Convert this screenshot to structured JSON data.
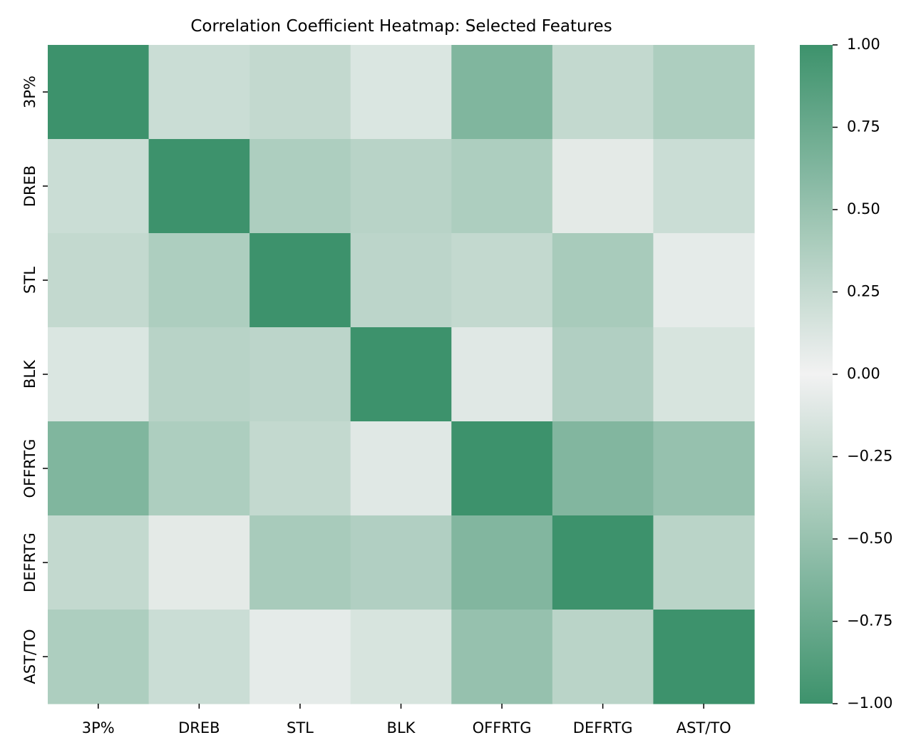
{
  "chart_data": {
    "type": "heatmap",
    "title": "Correlation Coefficient Heatmap: Selected Features",
    "xlabel": "",
    "ylabel": "",
    "x_labels": [
      "3P%",
      "DREB",
      "STL",
      "BLK",
      "OFFRTG",
      "DEFRTG",
      "AST/TO"
    ],
    "y_labels": [
      "3P%",
      "DREB",
      "STL",
      "BLK",
      "OFFRTG",
      "DEFRTG",
      "AST/TO"
    ],
    "values": [
      [
        1.0,
        0.22,
        0.26,
        0.13,
        0.63,
        0.26,
        0.38
      ],
      [
        0.22,
        1.0,
        0.38,
        0.32,
        0.38,
        0.08,
        0.22
      ],
      [
        0.26,
        0.38,
        1.0,
        0.3,
        0.26,
        0.41,
        0.07
      ],
      [
        0.13,
        0.32,
        0.3,
        1.0,
        0.1,
        0.36,
        0.15
      ],
      [
        0.63,
        0.38,
        0.26,
        0.1,
        1.0,
        0.62,
        0.51
      ],
      [
        0.26,
        0.08,
        0.41,
        0.36,
        0.62,
        1.0,
        0.31
      ],
      [
        0.38,
        0.22,
        0.07,
        0.15,
        0.51,
        0.31,
        1.0
      ]
    ],
    "vmin": -1.0,
    "vmax": 1.0,
    "colorbar_ticks": [
      "1.00",
      "0.75",
      "0.50",
      "0.25",
      "0.00",
      "−0.25",
      "−0.50",
      "−0.75",
      "−1.00"
    ],
    "colorbar_tick_values": [
      1.0,
      0.75,
      0.5,
      0.25,
      0.0,
      -0.25,
      -0.5,
      -0.75,
      -1.0
    ],
    "colormap": {
      "low": "#3d926c",
      "center": "#f2f2f2",
      "high": "#3d926c"
    },
    "grid": false,
    "legend": "colorbar-right"
  }
}
